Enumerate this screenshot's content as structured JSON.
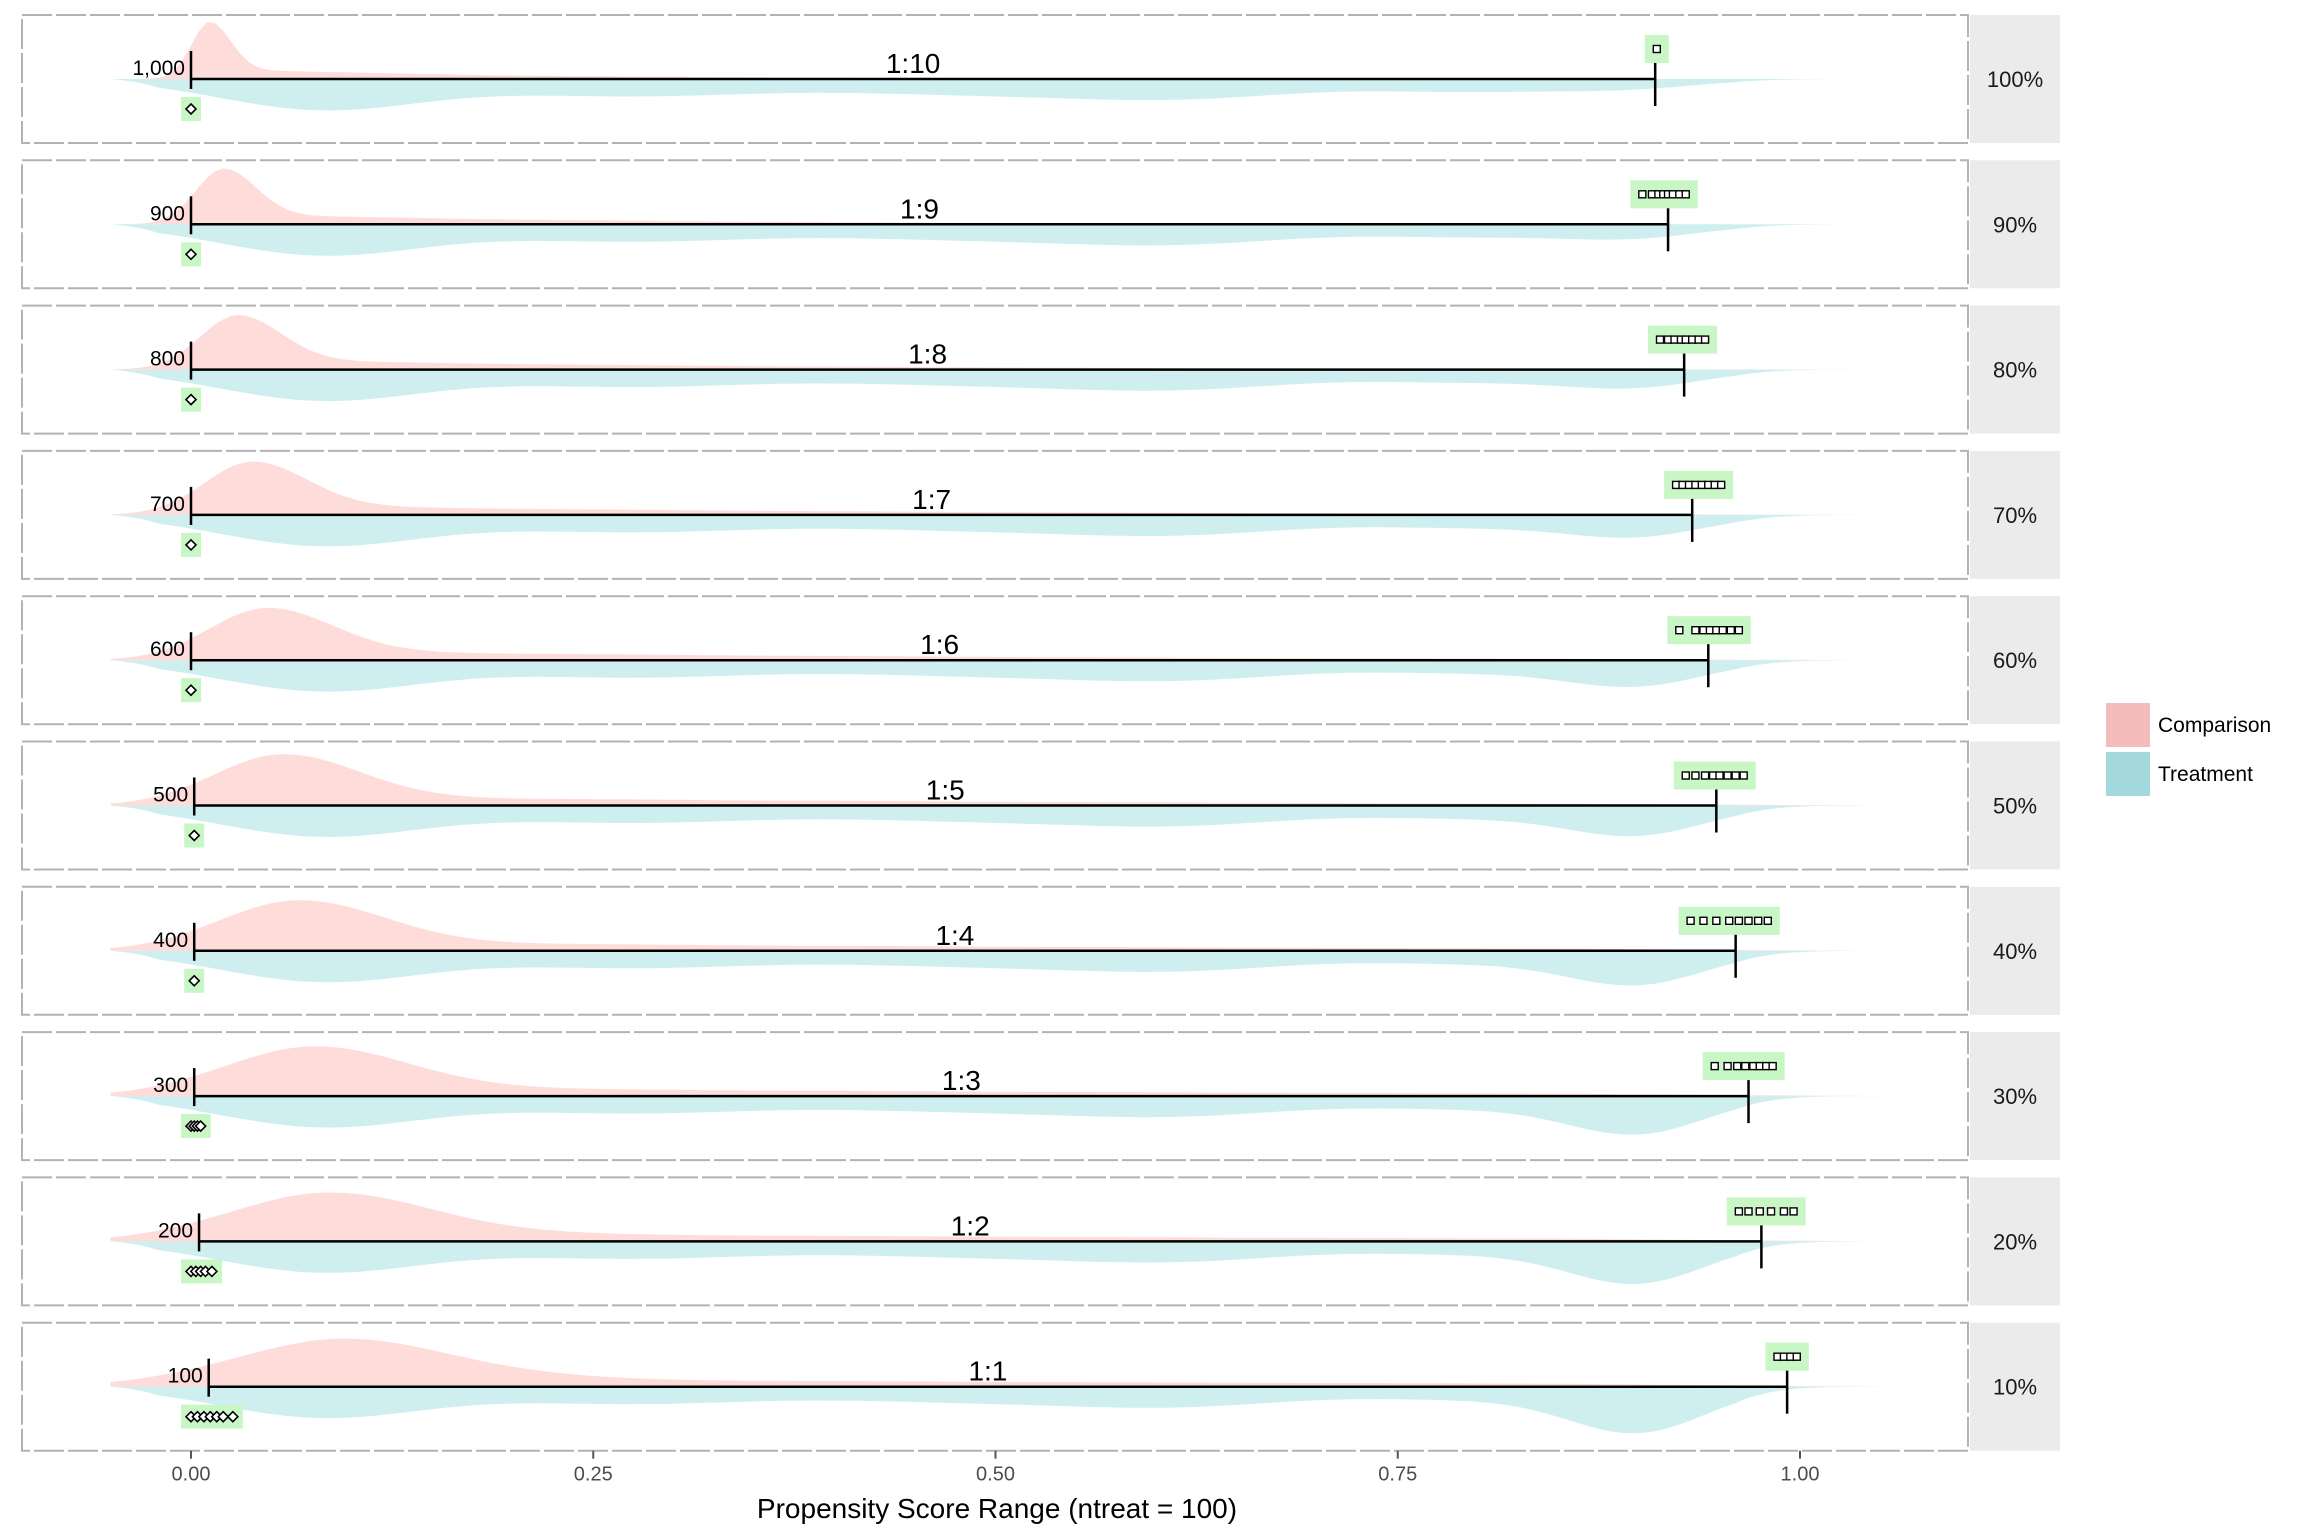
{
  "chart_data": {
    "type": "area",
    "xlabel": "Propensity Score Range (ntreat = 100)",
    "x_ticks": [
      "0.00",
      "0.25",
      "0.50",
      "0.75",
      "1.00"
    ],
    "x_tick_values": [
      0,
      0.25,
      0.5,
      0.75,
      1.0
    ],
    "xlim": [
      -0.05,
      1.05
    ],
    "legend": {
      "position": "right",
      "items": [
        {
          "name": "Comparison",
          "color": "#f4bdbb"
        },
        {
          "name": "Treatment",
          "color": "#a3d9dd"
        }
      ]
    },
    "colors": {
      "comparison_fill": "#fddcda",
      "treatment_fill": "#cfeef0",
      "highlight": "#c8f7c5",
      "strip_bg": "#ebebeb",
      "panel_border": "#b3b3b3"
    },
    "panels": [
      {
        "strip": "100%",
        "n_label": "1,000",
        "ratio": "1:10",
        "range_min": 0.0,
        "range_max": 0.91,
        "ctrl_points": [
          0.0
        ],
        "treat_points": [
          0.911
        ]
      },
      {
        "strip": "90%",
        "n_label": "900",
        "ratio": "1:9",
        "range_min": 0.0,
        "range_max": 0.918,
        "ctrl_points": [
          0.0
        ],
        "treat_points": [
          0.902,
          0.908,
          0.912,
          0.915,
          0.918,
          0.921,
          0.925,
          0.929
        ]
      },
      {
        "strip": "80%",
        "n_label": "800",
        "ratio": "1:8",
        "range_min": 0.0,
        "range_max": 0.928,
        "ctrl_points": [
          0.0
        ],
        "treat_points": [
          0.913,
          0.918,
          0.922,
          0.926,
          0.929,
          0.933,
          0.937,
          0.941
        ]
      },
      {
        "strip": "70%",
        "n_label": "700",
        "ratio": "1:7",
        "range_min": 0.0,
        "range_max": 0.933,
        "ctrl_points": [
          0.0
        ],
        "treat_points": [
          0.923,
          0.927,
          0.931,
          0.935,
          0.939,
          0.943,
          0.947,
          0.951
        ]
      },
      {
        "strip": "60%",
        "n_label": "600",
        "ratio": "1:6",
        "range_min": 0.0,
        "range_max": 0.943,
        "ctrl_points": [
          0.0
        ],
        "treat_points": [
          0.925,
          0.935,
          0.94,
          0.944,
          0.948,
          0.952,
          0.957,
          0.962
        ]
      },
      {
        "strip": "50%",
        "n_label": "500",
        "ratio": "1:5",
        "range_min": 0.002,
        "range_max": 0.948,
        "ctrl_points": [
          0.002
        ],
        "treat_points": [
          0.929,
          0.935,
          0.941,
          0.946,
          0.95,
          0.955,
          0.96,
          0.965
        ]
      },
      {
        "strip": "40%",
        "n_label": "400",
        "ratio": "1:4",
        "range_min": 0.002,
        "range_max": 0.96,
        "ctrl_points": [
          0.002
        ],
        "treat_points": [
          0.932,
          0.94,
          0.948,
          0.956,
          0.962,
          0.968,
          0.974,
          0.98
        ]
      },
      {
        "strip": "30%",
        "n_label": "300",
        "ratio": "1:3",
        "range_min": 0.002,
        "range_max": 0.968,
        "ctrl_points": [
          0.0,
          0.002,
          0.004,
          0.006
        ],
        "treat_points": [
          0.947,
          0.955,
          0.961,
          0.966,
          0.971,
          0.975,
          0.979,
          0.983
        ]
      },
      {
        "strip": "20%",
        "n_label": "200",
        "ratio": "1:2",
        "range_min": 0.005,
        "range_max": 0.976,
        "ctrl_points": [
          0.0,
          0.003,
          0.006,
          0.009,
          0.013
        ],
        "treat_points": [
          0.962,
          0.968,
          0.975,
          0.982,
          0.99,
          0.996
        ]
      },
      {
        "strip": "10%",
        "n_label": "100",
        "ratio": "1:1",
        "range_min": 0.011,
        "range_max": 0.992,
        "ctrl_points": [
          0.0,
          0.004,
          0.008,
          0.012,
          0.016,
          0.02,
          0.026
        ],
        "treat_points": [
          0.986,
          0.99,
          0.994,
          0.998
        ]
      }
    ]
  }
}
